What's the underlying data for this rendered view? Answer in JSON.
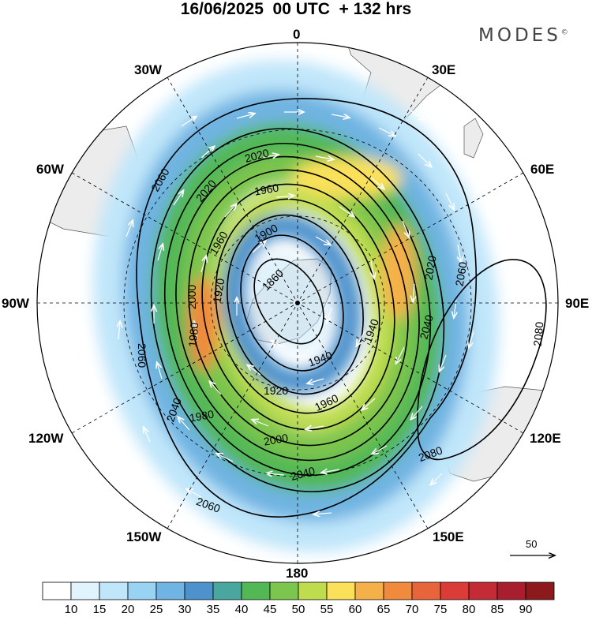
{
  "title": "16/06/2025  00 UTC  + 132 hrs",
  "brand": "MODES",
  "brand_mark": "©",
  "projection": "polar stereographic, south pole",
  "meridian_labels": {
    "m0": "0",
    "m30e": "30E",
    "m60e": "60E",
    "m90e": "90E",
    "m120e": "120E",
    "m150e": "150E",
    "m180": "180",
    "m150w": "150W",
    "m120w": "120W",
    "m90w": "90W",
    "m60w": "60W",
    "m30w": "30W"
  },
  "contour_labels": [
    "1860",
    "1900",
    "1920",
    "1920",
    "1940",
    "1940",
    "1960",
    "1960",
    "1960",
    "1980",
    "1980",
    "2000",
    "2000",
    "2020",
    "2020",
    "2020",
    "2040",
    "2040",
    "2040",
    "2060",
    "2060",
    "2060",
    "2060",
    "2080",
    "2080"
  ],
  "colorbar": {
    "colors": [
      "#ffffff",
      "#e1f3fd",
      "#c0e6fa",
      "#99d2f2",
      "#6fb4e2",
      "#4d92cc",
      "#4aa7a0",
      "#52b856",
      "#7cc54e",
      "#bedc4e",
      "#fbe15a",
      "#f6b04a",
      "#f08a3c",
      "#e8643a",
      "#dc3c38",
      "#c42c35",
      "#a81e2e",
      "#8c1a1c"
    ],
    "labels": [
      "10",
      "15",
      "20",
      "25",
      "30",
      "35",
      "40",
      "45",
      "50",
      "55",
      "60",
      "65",
      "70",
      "75",
      "80",
      "85",
      "90"
    ]
  },
  "wind_scale": {
    "label": "50"
  }
}
